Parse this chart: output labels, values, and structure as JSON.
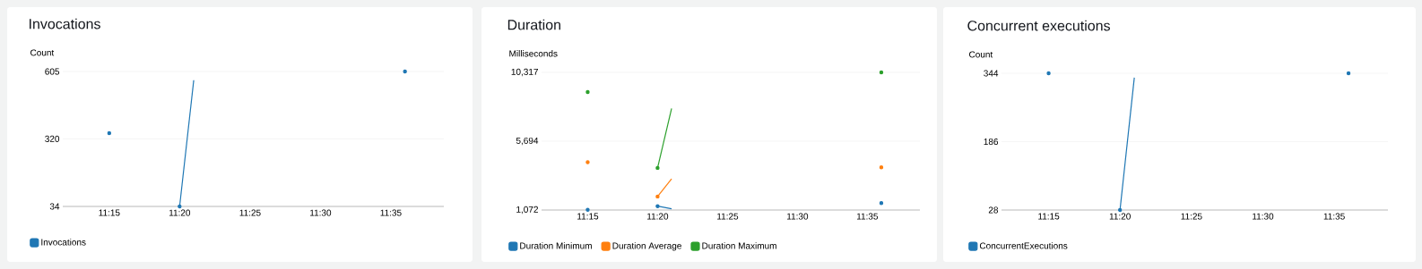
{
  "chart_data": [
    {
      "type": "line",
      "title": "Invocations",
      "ylabel": "Count",
      "x": [
        11.25,
        11.3,
        11.3333,
        11.35,
        11.5,
        11.6
      ],
      "series": [
        {
          "name": "Invocations",
          "color": "#1f77b4",
          "values": [
            344,
            null,
            34,
            568,
            null,
            605
          ]
        }
      ],
      "xlim": [
        11.195,
        11.646
      ],
      "xticks": [
        {
          "value": 11.25,
          "label": "11:15"
        },
        {
          "value": 11.3333,
          "label": "11:20"
        },
        {
          "value": 11.4167,
          "label": "11:25"
        },
        {
          "value": 11.5,
          "label": "11:30"
        },
        {
          "value": 11.5833,
          "label": "11:35"
        }
      ],
      "ylim": [
        34,
        605
      ],
      "yticks": [
        34,
        320,
        605
      ],
      "grid": "y",
      "legend": "bottom"
    },
    {
      "type": "line",
      "title": "Duration",
      "ylabel": "Milliseconds",
      "x": [
        11.25,
        11.3,
        11.3333,
        11.35,
        11.5,
        11.6
      ],
      "series": [
        {
          "name": "Duration Minimum",
          "color": "#1f77b4",
          "values": [
            1090,
            null,
            1330,
            1150,
            null,
            1540
          ]
        },
        {
          "name": "Duration Average",
          "color": "#ff7f0e",
          "values": [
            4280,
            null,
            1980,
            3170,
            null,
            3940
          ]
        },
        {
          "name": "Duration Maximum",
          "color": "#2ca02c",
          "values": [
            9000,
            null,
            3900,
            7890,
            null,
            10317
          ]
        }
      ],
      "xlim": [
        11.195,
        11.646
      ],
      "xticks": [
        {
          "value": 11.25,
          "label": "11:15"
        },
        {
          "value": 11.3333,
          "label": "11:20"
        },
        {
          "value": 11.4167,
          "label": "11:25"
        },
        {
          "value": 11.5,
          "label": "11:30"
        },
        {
          "value": 11.5833,
          "label": "11:35"
        }
      ],
      "ylim": [
        1072,
        10317
      ],
      "yticks": [
        {
          "value": 1072,
          "label": "1,072"
        },
        {
          "value": 5694,
          "label": "5,694"
        },
        {
          "value": 10317,
          "label": "10,317"
        }
      ],
      "grid": "y",
      "legend": "bottom"
    },
    {
      "type": "line",
      "title": "Concurrent executions",
      "ylabel": "Count",
      "x": [
        11.25,
        11.3,
        11.3333,
        11.35,
        11.5,
        11.6
      ],
      "series": [
        {
          "name": "ConcurrentExecutions",
          "color": "#1f77b4",
          "values": [
            344,
            null,
            28,
            334,
            null,
            344
          ]
        }
      ],
      "xlim": [
        11.195,
        11.646
      ],
      "xticks": [
        {
          "value": 11.25,
          "label": "11:15"
        },
        {
          "value": 11.3333,
          "label": "11:20"
        },
        {
          "value": 11.4167,
          "label": "11:25"
        },
        {
          "value": 11.5,
          "label": "11:30"
        },
        {
          "value": 11.5833,
          "label": "11:35"
        }
      ],
      "ylim": [
        28,
        344
      ],
      "yticks": [
        28,
        186,
        344
      ],
      "grid": "y",
      "legend": "bottom"
    }
  ]
}
